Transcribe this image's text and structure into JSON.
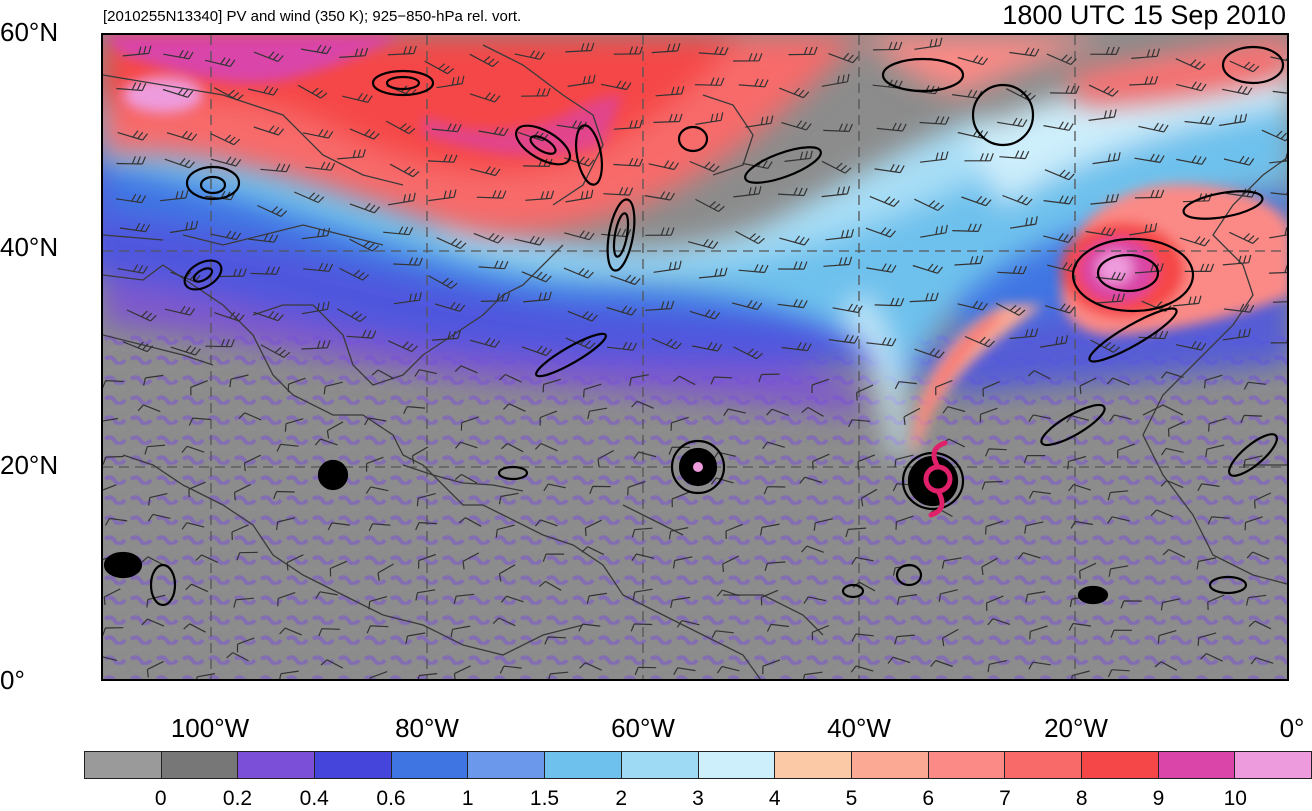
{
  "header": {
    "left": "[2010255N13340] PV and wind (350 K); 925−850-hPa rel. vort.",
    "right": "1800 UTC 15 Sep 2010"
  },
  "axes": {
    "y_labels": [
      "60°N",
      "40°N",
      "20°N",
      "0°"
    ],
    "x_labels": [
      "100°W",
      "80°W",
      "60°W",
      "40°W",
      "20°W",
      "0°"
    ],
    "lat_range": [
      0,
      60
    ],
    "lon_range": [
      -110,
      0
    ]
  },
  "colorbar": {
    "colors": [
      "#9a9a9a",
      "#777777",
      "#7b4fd8",
      "#4545dc",
      "#3f74e3",
      "#6b98ea",
      "#6ec1ed",
      "#9fdaf5",
      "#cdeefb",
      "#fcc9a7",
      "#fba994",
      "#fb8a86",
      "#f86a6a",
      "#f54747",
      "#d945a8",
      "#ee9bdd"
    ],
    "labels": [
      "0",
      "0.2",
      "0.4",
      "0.6",
      "1",
      "1.5",
      "2",
      "3",
      "4",
      "5",
      "6",
      "7",
      "8",
      "9",
      "10"
    ]
  },
  "colors": {
    "vort_contour": "#000000",
    "track_symbol": "#e0206a",
    "grid": "#555555"
  },
  "features": {
    "storm_symbol": "tropical-cyclone-symbol"
  }
}
